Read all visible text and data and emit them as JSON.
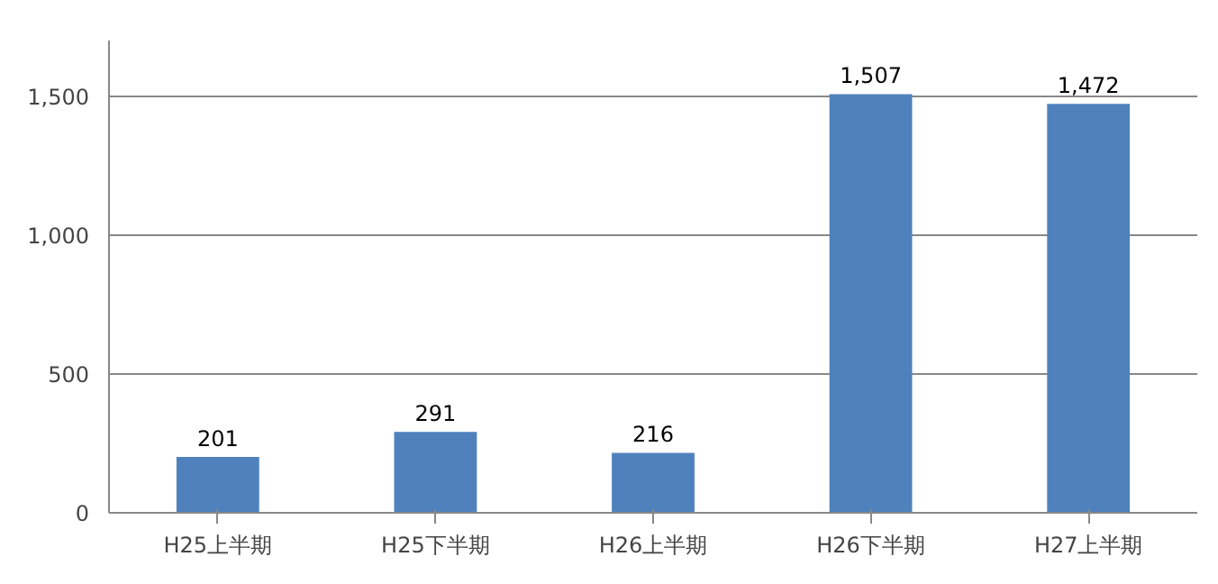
{
  "chart_data": {
    "type": "bar",
    "categories": [
      "H25上半期",
      "H25下半期",
      "H26上半期",
      "H26下半期",
      "H27上半期"
    ],
    "values": [
      201,
      291,
      216,
      1507,
      1472
    ],
    "value_labels": [
      "201",
      "291",
      "216",
      "1,507",
      "1,472"
    ],
    "color": "#4f81bd",
    "ylim": [
      0,
      1700
    ],
    "yticks": [
      0,
      500,
      {
        "value": 1000,
        "label": "1,000"
      },
      {
        "value": 1500,
        "label": "1,500"
      }
    ],
    "grid": "y"
  }
}
